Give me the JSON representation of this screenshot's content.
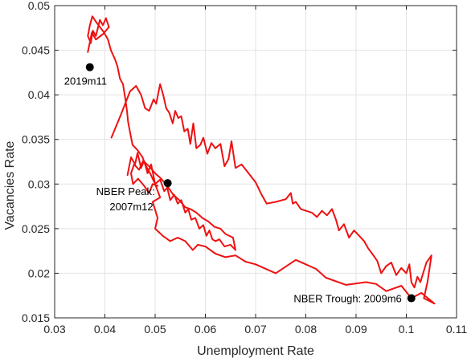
{
  "chart_data": {
    "type": "line",
    "title": "",
    "xlabel": "Unemployment Rate",
    "ylabel": "Vacancies Rate",
    "xlim": [
      0.03,
      0.11
    ],
    "ylim": [
      0.015,
      0.05
    ],
    "xticks": [
      0.03,
      0.04,
      0.05,
      0.06,
      0.07,
      0.08,
      0.09,
      0.1,
      0.11
    ],
    "xtick_labels": [
      "0.03",
      "0.04",
      "0.05",
      "0.06",
      "0.07",
      "0.08",
      "0.09",
      "0.1",
      "0.11"
    ],
    "yticks": [
      0.015,
      0.02,
      0.025,
      0.03,
      0.035,
      0.04,
      0.045,
      0.05
    ],
    "ytick_labels": [
      "0.015",
      "0.02",
      "0.025",
      "0.03",
      "0.035",
      "0.04",
      "0.045",
      "0.05"
    ],
    "grid": true,
    "line_color": "#ee1111",
    "series": [
      {
        "points": [
          [
            0.0413,
            0.0352
          ],
          [
            0.0432,
            0.0378
          ],
          [
            0.045,
            0.0404
          ],
          [
            0.0462,
            0.041
          ],
          [
            0.0472,
            0.04
          ],
          [
            0.048,
            0.0385
          ],
          [
            0.0488,
            0.0382
          ],
          [
            0.0497,
            0.0395
          ],
          [
            0.0502,
            0.039
          ],
          [
            0.051,
            0.0412
          ],
          [
            0.0516,
            0.04
          ],
          [
            0.0522,
            0.0385
          ],
          [
            0.0528,
            0.038
          ],
          [
            0.0535,
            0.0368
          ],
          [
            0.054,
            0.0382
          ],
          [
            0.0546,
            0.0374
          ],
          [
            0.0552,
            0.0376
          ],
          [
            0.0558,
            0.0359
          ],
          [
            0.0565,
            0.0362
          ],
          [
            0.057,
            0.0345
          ],
          [
            0.0576,
            0.0368
          ],
          [
            0.0582,
            0.034
          ],
          [
            0.059,
            0.0344
          ],
          [
            0.0596,
            0.0352
          ],
          [
            0.0604,
            0.0334
          ],
          [
            0.0612,
            0.0346
          ],
          [
            0.062,
            0.034
          ],
          [
            0.063,
            0.0345
          ],
          [
            0.0638,
            0.032
          ],
          [
            0.0646,
            0.0328
          ],
          [
            0.0652,
            0.0348
          ],
          [
            0.066,
            0.0318
          ],
          [
            0.0672,
            0.0322
          ],
          [
            0.0686,
            0.0312
          ],
          [
            0.07,
            0.0302
          ],
          [
            0.0712,
            0.0288
          ],
          [
            0.0722,
            0.0278
          ],
          [
            0.074,
            0.028
          ],
          [
            0.076,
            0.0283
          ],
          [
            0.077,
            0.029
          ],
          [
            0.0774,
            0.0278
          ],
          [
            0.078,
            0.028
          ],
          [
            0.079,
            0.0272
          ],
          [
            0.08,
            0.027
          ],
          [
            0.0812,
            0.0268
          ],
          [
            0.0822,
            0.0263
          ],
          [
            0.0832,
            0.027
          ],
          [
            0.0842,
            0.0265
          ],
          [
            0.0852,
            0.0272
          ],
          [
            0.086,
            0.026
          ],
          [
            0.0866,
            0.0248
          ],
          [
            0.0876,
            0.0255
          ],
          [
            0.0886,
            0.024
          ],
          [
            0.0896,
            0.0248
          ],
          [
            0.0906,
            0.0242
          ],
          [
            0.0916,
            0.0236
          ],
          [
            0.0924,
            0.0228
          ],
          [
            0.0932,
            0.0222
          ],
          [
            0.0942,
            0.0214
          ],
          [
            0.095,
            0.02
          ],
          [
            0.096,
            0.0208
          ],
          [
            0.097,
            0.0212
          ],
          [
            0.098,
            0.0198
          ],
          [
            0.099,
            0.0206
          ],
          [
            0.1,
            0.02
          ],
          [
            0.1006,
            0.021
          ],
          [
            0.101,
            0.019
          ],
          [
            0.1016,
            0.0184
          ],
          [
            0.1022,
            0.0196
          ],
          [
            0.1028,
            0.019
          ],
          [
            0.104,
            0.0212
          ],
          [
            0.105,
            0.022
          ],
          [
            0.1042,
            0.019
          ],
          [
            0.1035,
            0.0172
          ],
          [
            0.1056,
            0.0166
          ],
          [
            0.103,
            0.0178
          ],
          [
            0.101,
            0.0172
          ],
          [
            0.099,
            0.0186
          ],
          [
            0.096,
            0.018
          ],
          [
            0.094,
            0.0188
          ],
          [
            0.092,
            0.019
          ],
          [
            0.088,
            0.0187
          ],
          [
            0.084,
            0.0195
          ],
          [
            0.082,
            0.0205
          ],
          [
            0.078,
            0.0215
          ],
          [
            0.074,
            0.02
          ],
          [
            0.07,
            0.021
          ],
          [
            0.068,
            0.0213
          ],
          [
            0.066,
            0.022
          ],
          [
            0.064,
            0.0218
          ],
          [
            0.062,
            0.0222
          ],
          [
            0.06,
            0.023
          ],
          [
            0.0585,
            0.0232
          ],
          [
            0.0575,
            0.0226
          ],
          [
            0.056,
            0.0236
          ],
          [
            0.0545,
            0.024
          ],
          [
            0.053,
            0.0236
          ],
          [
            0.0515,
            0.0242
          ],
          [
            0.05,
            0.025
          ],
          [
            0.0505,
            0.0262
          ],
          [
            0.0495,
            0.028
          ],
          [
            0.051,
            0.0285
          ],
          [
            0.05,
            0.03
          ],
          [
            0.049,
            0.0312
          ],
          [
            0.048,
            0.0322
          ],
          [
            0.0475,
            0.033
          ],
          [
            0.0465,
            0.0338
          ],
          [
            0.0455,
            0.0344
          ],
          [
            0.045,
            0.0358
          ],
          [
            0.0446,
            0.037
          ],
          [
            0.0444,
            0.0382
          ],
          [
            0.044,
            0.0398
          ],
          [
            0.0436,
            0.0412
          ],
          [
            0.043,
            0.0418
          ],
          [
            0.0425,
            0.0432
          ],
          [
            0.042,
            0.044
          ],
          [
            0.0412,
            0.045
          ],
          [
            0.0406,
            0.0462
          ],
          [
            0.0398,
            0.047
          ],
          [
            0.039,
            0.0476
          ],
          [
            0.0382,
            0.0482
          ],
          [
            0.0375,
            0.0488
          ],
          [
            0.037,
            0.0478
          ],
          [
            0.0366,
            0.0466
          ],
          [
            0.0372,
            0.0458
          ],
          [
            0.0376,
            0.0472
          ],
          [
            0.0382,
            0.0466
          ],
          [
            0.039,
            0.0484
          ],
          [
            0.0396,
            0.0478
          ],
          [
            0.0402,
            0.0486
          ],
          [
            0.0408,
            0.0476
          ],
          [
            0.0396,
            0.0468
          ],
          [
            0.0382,
            0.0462
          ],
          [
            0.0374,
            0.047
          ],
          [
            0.0366,
            0.0448
          ]
        ]
      },
      {
        "points": [
          [
            0.0445,
            0.031
          ],
          [
            0.0452,
            0.033
          ],
          [
            0.046,
            0.0322
          ],
          [
            0.0465,
            0.0335
          ],
          [
            0.0472,
            0.0318
          ],
          [
            0.0478,
            0.0326
          ],
          [
            0.0485,
            0.0312
          ],
          [
            0.0492,
            0.0322
          ],
          [
            0.05,
            0.03
          ],
          [
            0.051,
            0.0305
          ],
          [
            0.0518,
            0.0292
          ],
          [
            0.0524,
            0.0296
          ],
          [
            0.053,
            0.0282
          ],
          [
            0.0538,
            0.0288
          ],
          [
            0.0545,
            0.0278
          ],
          [
            0.0552,
            0.0282
          ],
          [
            0.056,
            0.0268
          ],
          [
            0.0566,
            0.0272
          ],
          [
            0.0572,
            0.026
          ],
          [
            0.058,
            0.0262
          ],
          [
            0.0588,
            0.025
          ],
          [
            0.0596,
            0.0254
          ],
          [
            0.0602,
            0.0242
          ],
          [
            0.0608,
            0.0248
          ],
          [
            0.0614,
            0.0238
          ],
          [
            0.062,
            0.0236
          ],
          [
            0.0628,
            0.0238
          ],
          [
            0.0638,
            0.023
          ],
          [
            0.065,
            0.0232
          ],
          [
            0.066,
            0.0226
          ],
          [
            0.0655,
            0.024
          ],
          [
            0.064,
            0.0244
          ],
          [
            0.063,
            0.025
          ],
          [
            0.0618,
            0.0252
          ],
          [
            0.0606,
            0.0258
          ],
          [
            0.0594,
            0.0262
          ],
          [
            0.0582,
            0.0268
          ],
          [
            0.057,
            0.0272
          ],
          [
            0.056,
            0.0274
          ],
          [
            0.0548,
            0.0282
          ],
          [
            0.0536,
            0.0288
          ],
          [
            0.0524,
            0.0298
          ],
          [
            0.0512,
            0.0306
          ],
          [
            0.05,
            0.0312
          ],
          [
            0.0488,
            0.032
          ],
          [
            0.0476,
            0.0326
          ],
          [
            0.0468,
            0.0316
          ],
          [
            0.0458,
            0.0322
          ],
          [
            0.0452,
            0.0312
          ],
          [
            0.0456,
            0.03
          ],
          [
            0.0466,
            0.0306
          ],
          [
            0.0478,
            0.0298
          ],
          [
            0.0488,
            0.029
          ],
          [
            0.0495,
            0.03
          ],
          [
            0.0505,
            0.0298
          ]
        ]
      }
    ],
    "markers": [
      {
        "x": 0.037,
        "y": 0.0431,
        "label": "2019m11"
      },
      {
        "x": 0.0525,
        "y": 0.0301,
        "label": "NBER Peak:",
        "label2": "2007m12"
      },
      {
        "x": 0.101,
        "y": 0.0172,
        "label": "NBER Trough: 2009m6"
      }
    ]
  }
}
